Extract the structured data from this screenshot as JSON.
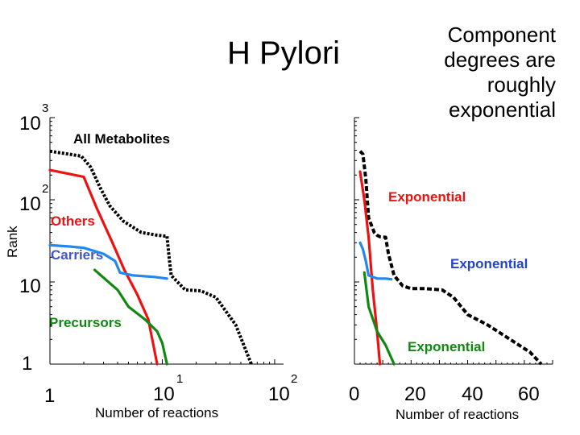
{
  "page": {
    "title": "H Pylori",
    "note": "Component degrees are roughly exponential"
  },
  "chart_data": [
    {
      "type": "line",
      "scale": "log-log",
      "xlabel": "Number of reactions",
      "ylabel": "Rank",
      "xlim": [
        1,
        120
      ],
      "ylim": [
        1,
        1000
      ],
      "x_ticks": [
        {
          "base": "1",
          "exp": ""
        },
        {
          "base": "10",
          "exp": "1"
        },
        {
          "base": "10",
          "exp": "2"
        }
      ],
      "y_ticks": [
        {
          "base": "1",
          "exp": ""
        },
        {
          "base": "10",
          "exp": ""
        },
        {
          "base": "10",
          "exp": "2"
        },
        {
          "base": "10",
          "exp": "3"
        }
      ],
      "series": [
        {
          "name": "All Metabolites",
          "color": "#000000",
          "style": "dotted",
          "x": [
            1,
            1.9,
            2.3,
            2.8,
            3.4,
            4.5,
            6.5,
            9,
            11,
            11.5,
            12,
            16,
            22,
            30,
            45,
            62
          ],
          "y": [
            390,
            340,
            250,
            140,
            85,
            55,
            40,
            37,
            36,
            20,
            12,
            8.0,
            7.8,
            6.5,
            3.0,
            1
          ]
        },
        {
          "name": "Others",
          "color": "#ee1111",
          "style": "solid",
          "x": [
            1,
            2,
            2.6,
            3.6,
            4.6,
            6,
            7.5,
            9
          ],
          "y": [
            230,
            190,
            80,
            30,
            14,
            7,
            3.5,
            1
          ]
        },
        {
          "name": "Carriers",
          "color": "#2288ee",
          "style": "solid",
          "x": [
            1,
            1.5,
            2,
            3,
            3.8,
            4.2,
            5.5,
            8.5,
            11
          ],
          "y": [
            28,
            27,
            26,
            22,
            18,
            13,
            12,
            11.5,
            11
          ]
        },
        {
          "name": "Precursors",
          "color": "#118811",
          "style": "solid",
          "x": [
            2.5,
            4,
            5,
            7,
            9,
            10,
            11
          ],
          "y": [
            14,
            8,
            5,
            3.5,
            2.5,
            1.8,
            1
          ]
        }
      ]
    },
    {
      "type": "line",
      "scale": "log-linear",
      "xlabel": "Number of reactions",
      "ylabel": "",
      "xlim": [
        0,
        70
      ],
      "ylim": [
        1,
        1000
      ],
      "x_ticks": [
        "0",
        "20",
        "40",
        "60"
      ],
      "series": [
        {
          "name": "All Metabolites",
          "color": "#000000",
          "style": "dashed",
          "x": [
            2,
            3,
            4,
            5,
            7,
            8,
            9,
            11,
            12,
            14,
            17,
            20,
            25,
            31,
            35,
            40,
            47,
            55,
            62,
            66
          ],
          "y": [
            390,
            360,
            180,
            60,
            40,
            37,
            35.5,
            35,
            22,
            12,
            9,
            8.3,
            8.3,
            8,
            6.5,
            4,
            3,
            2,
            1.4,
            1
          ]
        },
        {
          "name": "",
          "color": "#ee1111",
          "style": "solid",
          "x": [
            2,
            3.5,
            5,
            6.5,
            8,
            9
          ],
          "y": [
            220,
            100,
            35,
            8,
            2.5,
            1
          ]
        },
        {
          "name": "",
          "color": "#2288ee",
          "style": "solid",
          "x": [
            2,
            3,
            4,
            5,
            8,
            11,
            13
          ],
          "y": [
            30,
            25,
            18,
            12,
            11,
            11,
            10.8
          ]
        },
        {
          "name": "",
          "color": "#118811",
          "style": "solid",
          "x": [
            3.5,
            5,
            8,
            11,
            14
          ],
          "y": [
            13,
            5,
            2.5,
            1.7,
            1
          ]
        }
      ]
    }
  ],
  "annotations": {
    "all_metabolites": "All Metabolites",
    "others": "Others",
    "carriers": "Carriers",
    "precursors": "Precursors",
    "exp_red": "Exponential",
    "exp_blue": "Exponential",
    "exp_green": "Exponential"
  },
  "colors": {
    "red_label": "#ee1111",
    "blue_label": "#2244cc",
    "green_label": "#118811",
    "blue_series_label": "#4455cc"
  }
}
